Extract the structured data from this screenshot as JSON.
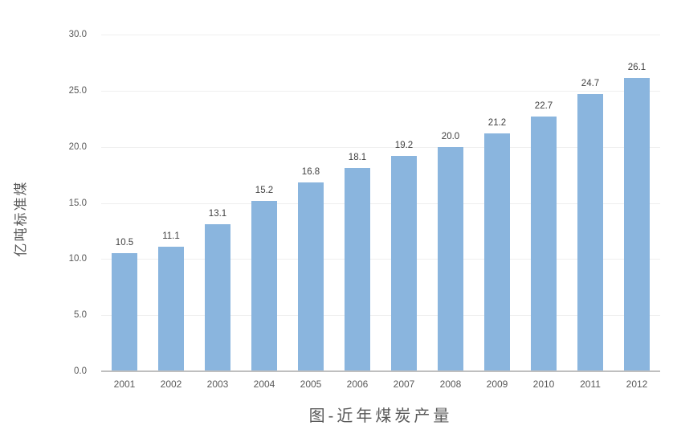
{
  "chart_data": {
    "type": "bar",
    "title": "图-近年煤炭产量",
    "ylabel": "亿吨标准煤",
    "xlabel": "",
    "categories": [
      "2001",
      "2002",
      "2003",
      "2004",
      "2005",
      "2006",
      "2007",
      "2008",
      "2009",
      "2010",
      "2011",
      "2012"
    ],
    "values": [
      10.5,
      11.1,
      13.1,
      15.2,
      16.8,
      18.1,
      19.2,
      20.0,
      21.2,
      22.7,
      24.7,
      26.1
    ],
    "value_labels": [
      "10.5",
      "11.1",
      "13.1",
      "15.2",
      "16.8",
      "18.1",
      "19.2",
      "20.0",
      "21.2",
      "22.7",
      "24.7",
      "26.1"
    ],
    "ylim": [
      0,
      30
    ],
    "ytick_step": 5,
    "ytick_labels": [
      "0.0",
      "5.0",
      "10.0",
      "15.0",
      "20.0",
      "25.0",
      "30.0"
    ],
    "grid": true,
    "legend": "none",
    "colors": {
      "bar_fill": "#8ab5de",
      "gridline": "#efefef",
      "axis_line": "#bfbfbf",
      "tick_text": "#595959",
      "data_label_text": "#404040",
      "title_text": "#595959"
    }
  }
}
